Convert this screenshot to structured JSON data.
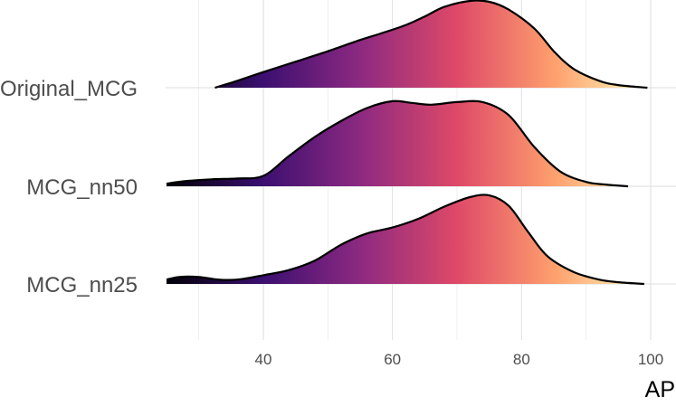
{
  "chart_data": {
    "type": "ridgeline density",
    "xlabel": "AP",
    "ylabel": "",
    "xlim": [
      24,
      104
    ],
    "x_ticks": [
      40,
      60,
      80,
      100
    ],
    "x_tick_labels": [
      "40",
      "60",
      "80",
      "100"
    ],
    "grid": true,
    "fill_gradient": {
      "palette": "magma",
      "stops": [
        "#000004",
        "#3b0f70",
        "#8c2981",
        "#de4968",
        "#fe9f6d",
        "#fcfdbf"
      ]
    },
    "series": [
      {
        "name": "Original_MCG",
        "x": [
          32.5,
          36,
          40,
          45,
          50,
          55,
          58,
          62,
          65,
          68,
          72,
          75,
          78,
          82,
          85,
          88,
          92,
          95,
          99.5
        ],
        "density": [
          0.0,
          0.08,
          0.18,
          0.3,
          0.42,
          0.55,
          0.62,
          0.72,
          0.82,
          0.93,
          1.0,
          0.99,
          0.9,
          0.68,
          0.42,
          0.22,
          0.08,
          0.03,
          0.0
        ]
      },
      {
        "name": "MCG_nn50",
        "x": [
          25,
          28,
          32,
          36,
          40,
          44,
          48,
          52,
          56,
          60,
          63,
          66,
          70,
          74,
          78,
          82,
          86,
          90,
          93,
          96.5
        ],
        "density": [
          0.03,
          0.06,
          0.08,
          0.09,
          0.12,
          0.35,
          0.57,
          0.75,
          0.9,
          0.98,
          0.96,
          0.94,
          0.97,
          0.97,
          0.82,
          0.45,
          0.17,
          0.05,
          0.02,
          0.0
        ]
      },
      {
        "name": "MCG_nn25",
        "x": [
          25,
          27,
          30,
          33,
          36,
          40,
          44,
          48,
          52,
          56,
          60,
          64,
          68,
          72,
          75,
          78,
          81,
          84,
          88,
          92,
          95,
          99
        ],
        "density": [
          0.05,
          0.08,
          0.08,
          0.05,
          0.05,
          0.1,
          0.16,
          0.27,
          0.45,
          0.58,
          0.65,
          0.75,
          0.89,
          1.0,
          1.02,
          0.9,
          0.6,
          0.32,
          0.14,
          0.05,
          0.02,
          0.0
        ]
      }
    ]
  }
}
